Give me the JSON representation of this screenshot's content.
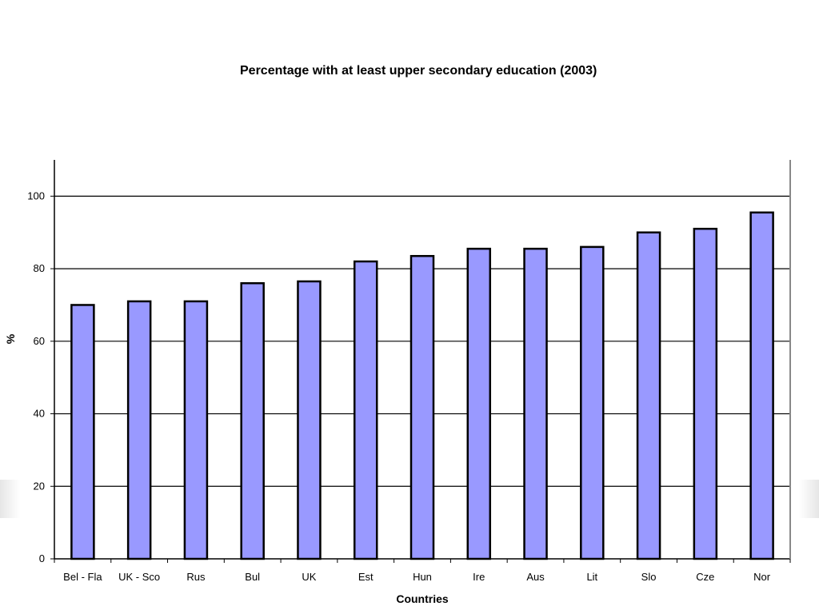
{
  "chart_data": {
    "type": "bar",
    "title": "Percentage with at least upper secondary education (2003)",
    "xlabel": "Countries",
    "ylabel": "%",
    "ylim": [
      0,
      110
    ],
    "yticks": [
      0,
      20,
      40,
      60,
      80,
      100
    ],
    "grid": true,
    "categories": [
      "Bel - Fla",
      "UK - Sco",
      "Rus",
      "Bul",
      "UK",
      "Est",
      "Hun",
      "Ire",
      "Aus",
      "Lit",
      "Slo",
      "Cze",
      "Nor"
    ],
    "values": [
      70,
      71,
      71,
      76,
      76.5,
      82,
      83.5,
      85.5,
      85.5,
      86,
      90,
      91,
      95.5
    ],
    "colors": {
      "bar_fill": "#9999ff",
      "bar_stroke": "#000000"
    }
  }
}
